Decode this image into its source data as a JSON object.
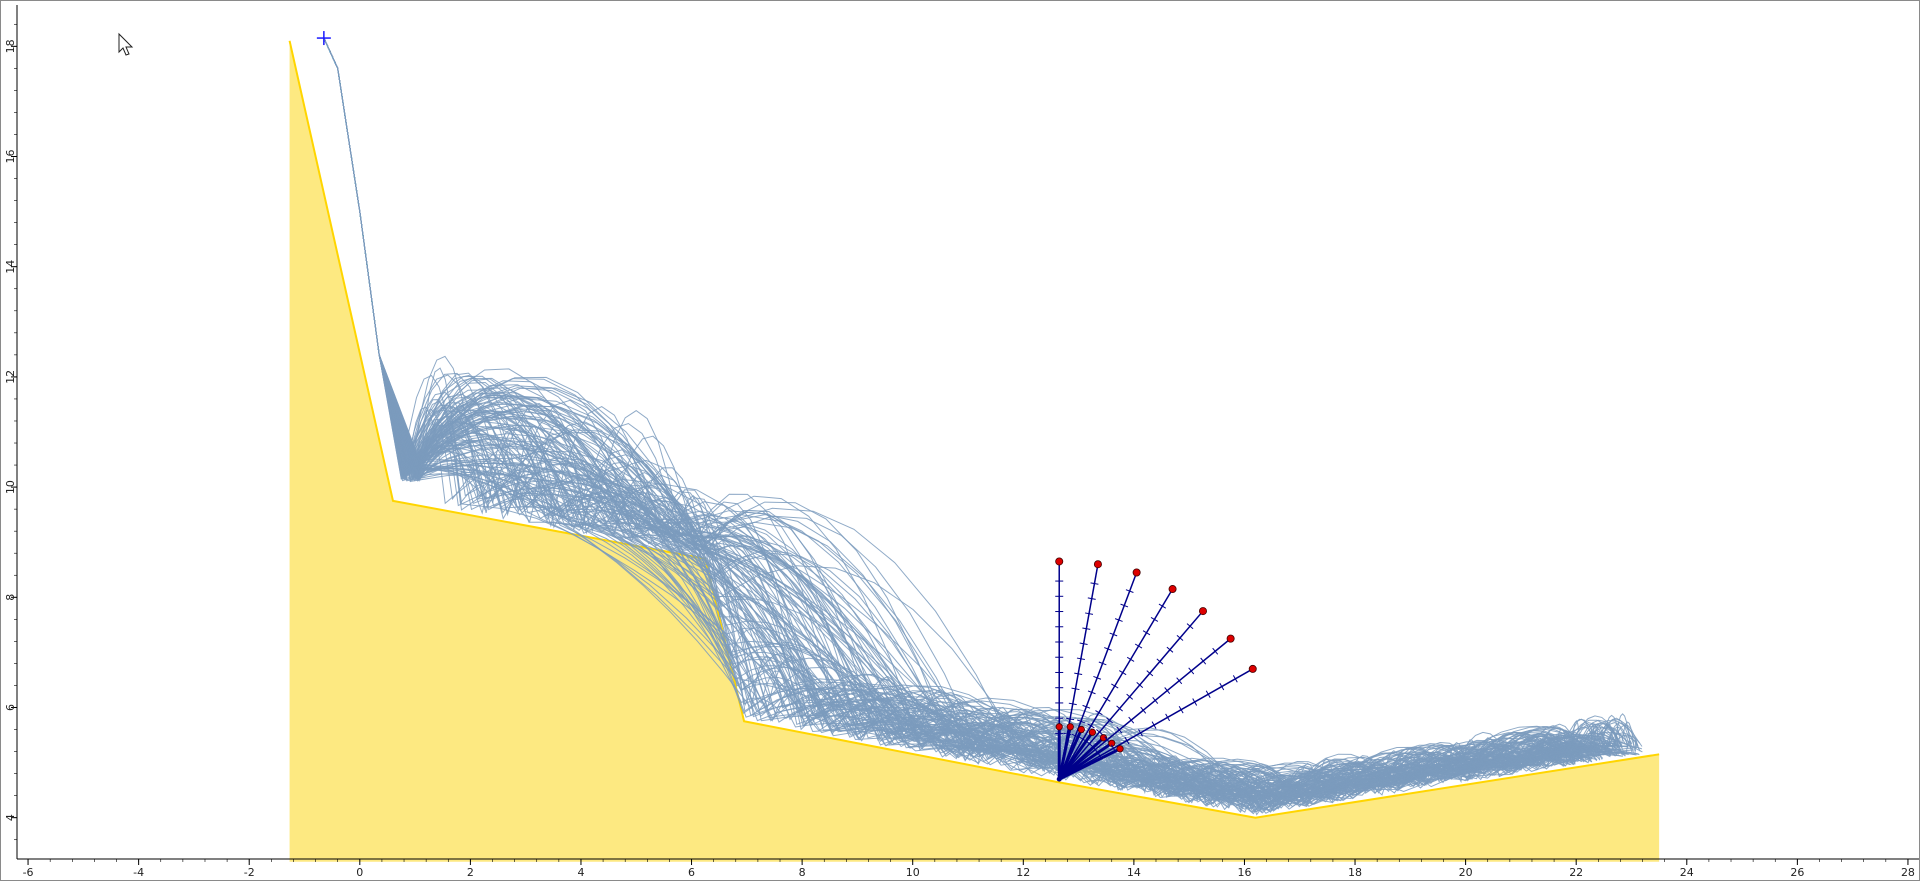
{
  "chart_data": {
    "type": "line",
    "title": "",
    "xlabel": "",
    "ylabel": "",
    "xlim": [
      -6.2,
      28.2
    ],
    "ylim": [
      3.25,
      18.75
    ],
    "x_ticks": [
      -6,
      -4,
      -2,
      0,
      2,
      4,
      6,
      8,
      10,
      12,
      14,
      16,
      18,
      20,
      22,
      24,
      26,
      28
    ],
    "y_ticks": [
      4,
      6,
      8,
      10,
      12,
      14,
      16,
      18
    ],
    "grid": false,
    "slope_profile": {
      "name": "",
      "points": [
        [
          -1.27,
          3.2
        ],
        [
          -1.27,
          18.1
        ],
        [
          0.6,
          9.75
        ],
        [
          6.25,
          8.7
        ],
        [
          6.95,
          5.75
        ],
        [
          12.6,
          4.65
        ],
        [
          16.2,
          4.0
        ],
        [
          23.5,
          5.15
        ],
        [
          23.5,
          3.2
        ]
      ]
    },
    "seeder": {
      "x": -0.65,
      "y": 18.15
    },
    "collector": {
      "origin": [
        12.65,
        4.7
      ],
      "lines": [
        {
          "end": [
            12.65,
            8.65
          ],
          "inner": [
            12.65,
            5.65
          ]
        },
        {
          "end": [
            13.35,
            8.6
          ],
          "inner": [
            12.85,
            5.65
          ]
        },
        {
          "end": [
            14.05,
            8.45
          ],
          "inner": [
            13.05,
            5.6
          ]
        },
        {
          "end": [
            14.7,
            8.15
          ],
          "inner": [
            13.25,
            5.55
          ]
        },
        {
          "end": [
            15.25,
            7.75
          ],
          "inner": [
            13.45,
            5.45
          ]
        },
        {
          "end": [
            15.75,
            7.25
          ],
          "inner": [
            13.6,
            5.35
          ]
        },
        {
          "end": [
            16.15,
            6.7
          ],
          "inner": [
            13.75,
            5.25
          ]
        }
      ]
    },
    "trajectories": {
      "count": 130,
      "color": "#7b9bbd",
      "start": [
        -0.65,
        18.15
      ],
      "end_x_range": [
        21.8,
        23.2
      ]
    },
    "colors": {
      "slope_fill": "#fde981",
      "slope_stroke": "#ffd500",
      "trajectory": "#7b9bbd",
      "collector": "#00008b",
      "collector_point": "#dd0000",
      "seeder": "#1a1aff"
    }
  },
  "icons": {
    "cursor": "mouse-pointer-icon"
  }
}
